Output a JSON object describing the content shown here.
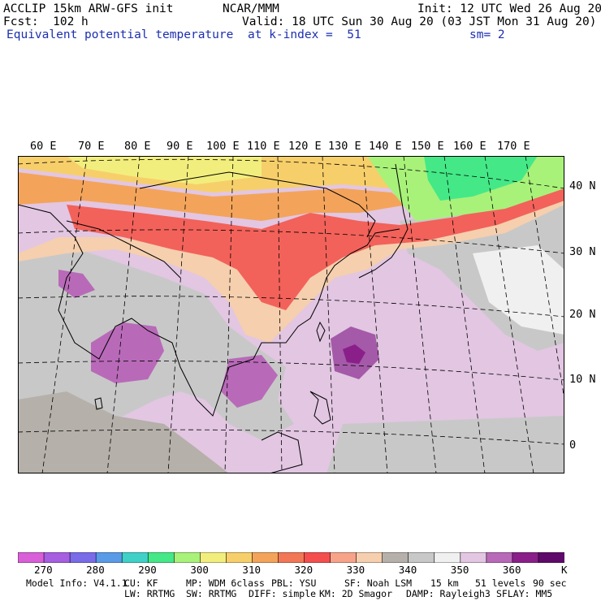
{
  "header": {
    "model_line": "ACCLIP 15km ARW-GFS init",
    "org": "NCAR/MMM",
    "init": "Init: 12 UTC Wed 26 Aug 20",
    "fcst": "Fcst:  102 h",
    "valid": "Valid: 18 UTC Sun 30 Aug 20 (03 JST Mon 31 Aug 20)",
    "field": "Equivalent potential temperature",
    "level": "at k-index =  51",
    "smooth": "sm= 2"
  },
  "map": {
    "lon_labels": [
      "60 E",
      "70 E",
      "80 E",
      "90 E",
      "100 E",
      "110 E",
      "120 E",
      "130 E",
      "140 E",
      "150 E",
      "160 E",
      "170 E"
    ],
    "lat_labels": [
      "40 N",
      "30 N",
      "20 N",
      "10 N",
      "0"
    ]
  },
  "colorbar": {
    "unit": "K",
    "labels": [
      "270",
      "280",
      "290",
      "300",
      "310",
      "320",
      "330",
      "340",
      "350",
      "360"
    ],
    "colors": [
      "#d85fd8",
      "#a55fe0",
      "#7a6ce8",
      "#5a9be8",
      "#3fd1c8",
      "#44e887",
      "#a8f27a",
      "#f2ee7d",
      "#f7cf6a",
      "#f3a45a",
      "#f27757",
      "#f54e4e",
      "#f7a38a",
      "#f5cfae",
      "#b5b0aa",
      "#c8c8c8",
      "#f0f0f0",
      "#e2c6e2",
      "#b86ab8",
      "#8a1f8a",
      "#5f0a6a"
    ]
  },
  "footer": {
    "line1": [
      "Model Info: V4.1.1",
      "CU: KF",
      "MP: WDM 6class",
      "PBL: YSU",
      "SF: Noah LSM",
      "15 km",
      "51 levels",
      "90 sec"
    ],
    "line2": [
      "LW: RRTMG",
      "SW: RRTMG",
      "DIFF: simple",
      "KM: 2D Smagor",
      "DAMP: Rayleigh3",
      "SFLAY: MM5"
    ]
  }
}
